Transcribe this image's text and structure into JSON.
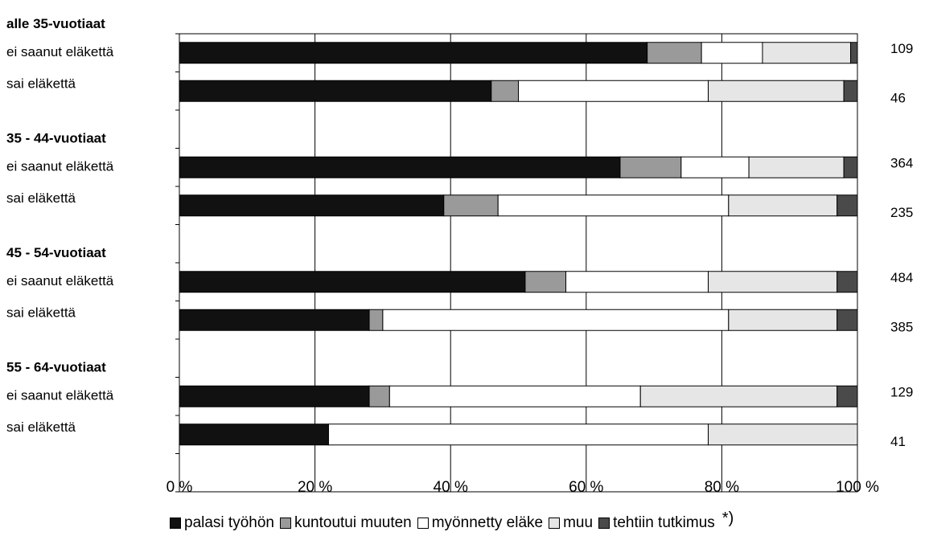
{
  "chart_data": {
    "type": "bar",
    "orientation": "horizontal",
    "stacked": true,
    "percent_scale": true,
    "xlim": [
      0,
      100
    ],
    "x_ticks": [
      "0 %",
      "20 %",
      "40 %",
      "60 %",
      "80 %",
      "100 %"
    ],
    "grid": true,
    "legend_position": "bottom",
    "series": [
      {
        "name": "palasi työhön",
        "color": "#111111"
      },
      {
        "name": "kuntoutui muuten",
        "color": "#9a9a9a"
      },
      {
        "name": "myönnetty eläke",
        "color": "#ffffff"
      },
      {
        "name": "muu",
        "color": "#e6e6e6"
      },
      {
        "name": "tehtiin tutkimus",
        "color": "#4a4a4a"
      }
    ],
    "groups": [
      {
        "label": "alle 35-vuotiaat",
        "bars": [
          {
            "label": "ei saanut eläkettä",
            "values": [
              69,
              8,
              9,
              13,
              1
            ],
            "n": "109"
          },
          {
            "label": "sai eläkettä",
            "values": [
              46,
              4,
              28,
              20,
              2
            ],
            "n": "46"
          }
        ]
      },
      {
        "label": "35 - 44-vuotiaat",
        "bars": [
          {
            "label": "ei saanut eläkettä",
            "values": [
              65,
              9,
              10,
              14,
              2
            ],
            "n": "364"
          },
          {
            "label": "sai eläkettä",
            "values": [
              39,
              8,
              34,
              16,
              3
            ],
            "n": "235"
          }
        ]
      },
      {
        "label": "45 - 54-vuotiaat",
        "bars": [
          {
            "label": "ei saanut eläkettä",
            "values": [
              51,
              6,
              21,
              19,
              3
            ],
            "n": "484"
          },
          {
            "label": "sai eläkettä",
            "values": [
              28,
              2,
              51,
              16,
              3
            ],
            "n": "385"
          }
        ]
      },
      {
        "label": "55 - 64-vuotiaat",
        "bars": [
          {
            "label": "ei saanut eläkettä",
            "values": [
              28,
              3,
              37,
              29,
              3
            ],
            "n": "129"
          },
          {
            "label": "sai eläkettä",
            "values": [
              22,
              0,
              56,
              22,
              0
            ],
            "n": "41"
          }
        ]
      }
    ],
    "footnote": "*)"
  }
}
